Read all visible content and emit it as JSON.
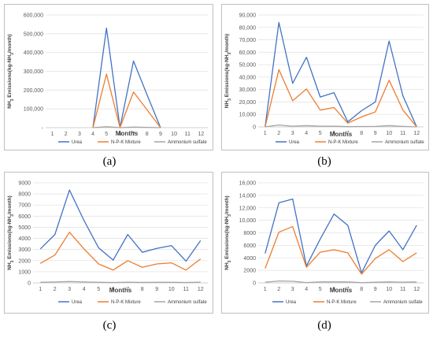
{
  "chart_data": [
    {
      "type": "line",
      "panel_label": "(a)",
      "xlabel": "Months",
      "ylabel_main": "NH",
      "ylabel_sub": "3",
      "ylabel_rest": " Emissions(kg-NH",
      "ylabel_sub2": "3",
      "ylabel_end": "/month)",
      "categories": [
        "1",
        "2",
        "3",
        "4",
        "5",
        "6",
        "7",
        "8",
        "9",
        "10",
        "11",
        "12"
      ],
      "ylim": [
        0,
        600000
      ],
      "yticks": [
        "-",
        "100,000",
        "200,000",
        "300,000",
        "400,000",
        "500,000",
        "600,000"
      ],
      "grid": true,
      "legend_position": "bottom",
      "series": [
        {
          "name": "Urea",
          "color": "#4472c4",
          "values": [
            null,
            null,
            null,
            0,
            530000,
            0,
            355000,
            175000,
            0,
            null,
            null,
            null
          ]
        },
        {
          "name": "N-P-K Mixture",
          "color": "#ed7d31",
          "values": [
            null,
            null,
            null,
            0,
            285000,
            0,
            190000,
            95000,
            0,
            null,
            null,
            null
          ]
        },
        {
          "name": "Ammonium sulfate",
          "color": "#a5a5a5",
          "values": [
            null,
            null,
            null,
            0,
            5000,
            0,
            3000,
            1500,
            0,
            null,
            null,
            null
          ]
        }
      ]
    },
    {
      "type": "line",
      "panel_label": "(b)",
      "xlabel": "Months",
      "ylabel_main": "NH",
      "ylabel_sub": "3",
      "ylabel_rest": " Emissions(kg-NH",
      "ylabel_sub2": "3",
      "ylabel_end": "/month)",
      "categories": [
        "1",
        "2",
        "3",
        "4",
        "5",
        "6",
        "7",
        "8",
        "9",
        "10",
        "11",
        "12"
      ],
      "ylim": [
        0,
        90000
      ],
      "yticks": [
        "0",
        "10,000",
        "20,000",
        "30,000",
        "40,000",
        "50,000",
        "60,000",
        "70,000",
        "80,000",
        "90,000"
      ],
      "grid": true,
      "legend_position": "bottom",
      "series": [
        {
          "name": "Urea",
          "color": "#4472c4",
          "values": [
            0,
            84000,
            35000,
            56000,
            24000,
            27500,
            4000,
            13000,
            20000,
            69000,
            25000,
            0
          ]
        },
        {
          "name": "N-P-K Mixture",
          "color": "#ed7d31",
          "values": [
            0,
            46000,
            21000,
            30500,
            13500,
            15500,
            3000,
            8000,
            12000,
            37500,
            13500,
            0
          ]
        },
        {
          "name": "Ammonium sulfate",
          "color": "#a5a5a5",
          "values": [
            0,
            1500,
            500,
            1000,
            500,
            500,
            200,
            300,
            400,
            1000,
            400,
            0
          ]
        }
      ]
    },
    {
      "type": "line",
      "panel_label": "(c)",
      "xlabel": "Months",
      "ylabel_main": "NH",
      "ylabel_sub": "3",
      "ylabel_rest": " Emissions(kg-NH",
      "ylabel_sub2": "3",
      "ylabel_end": "/month)",
      "categories": [
        "1",
        "2",
        "3",
        "4",
        "5",
        "6",
        "7",
        "8",
        "9",
        "10",
        "11",
        "12"
      ],
      "ylim": [
        0,
        9000
      ],
      "yticks": [
        "0",
        "1000",
        "2000",
        "3000",
        "4000",
        "5000",
        "6000",
        "7000",
        "8000",
        "9000"
      ],
      "grid": true,
      "legend_position": "bottom",
      "series": [
        {
          "name": "Urea",
          "color": "#4472c4",
          "values": [
            3050,
            4350,
            8350,
            5600,
            3150,
            2050,
            4350,
            2750,
            3100,
            3350,
            1950,
            3800
          ]
        },
        {
          "name": "N-P-K Mixture",
          "color": "#ed7d31",
          "values": [
            1750,
            2500,
            4550,
            3050,
            1700,
            1150,
            2000,
            1400,
            1700,
            1800,
            1150,
            2150
          ]
        },
        {
          "name": "Ammonium sulfate",
          "color": "#a5a5a5",
          "values": [
            50,
            80,
            120,
            80,
            50,
            30,
            60,
            40,
            50,
            50,
            30,
            60
          ]
        }
      ]
    },
    {
      "type": "line",
      "panel_label": "(d)",
      "xlabel": "Months",
      "ylabel_main": "NH",
      "ylabel_sub": "3",
      "ylabel_rest": " Emissions(kg-NH",
      "ylabel_sub2": "3",
      "ylabel_end": "/month)",
      "categories": [
        "1",
        "2",
        "3",
        "4",
        "5",
        "6",
        "7",
        "8",
        "9",
        "10",
        "11",
        "12"
      ],
      "ylim": [
        0,
        16000
      ],
      "yticks": [
        "0",
        "2000",
        "4000",
        "6000",
        "8000",
        "10,000",
        "12,000",
        "14,000",
        "16,000"
      ],
      "grid": true,
      "legend_position": "bottom",
      "series": [
        {
          "name": "Urea",
          "color": "#4472c4",
          "values": [
            4700,
            12800,
            13400,
            2700,
            7000,
            11000,
            9200,
            1600,
            6000,
            8300,
            5300,
            9200
          ]
        },
        {
          "name": "N-P-K Mixture",
          "color": "#ed7d31",
          "values": [
            2300,
            8100,
            9000,
            2500,
            4900,
            5300,
            4800,
            1400,
            3900,
            5300,
            3400,
            4800
          ]
        },
        {
          "name": "Ammonium sulfate",
          "color": "#a5a5a5",
          "values": [
            100,
            300,
            250,
            50,
            150,
            150,
            150,
            30,
            100,
            150,
            100,
            150
          ]
        }
      ]
    }
  ]
}
